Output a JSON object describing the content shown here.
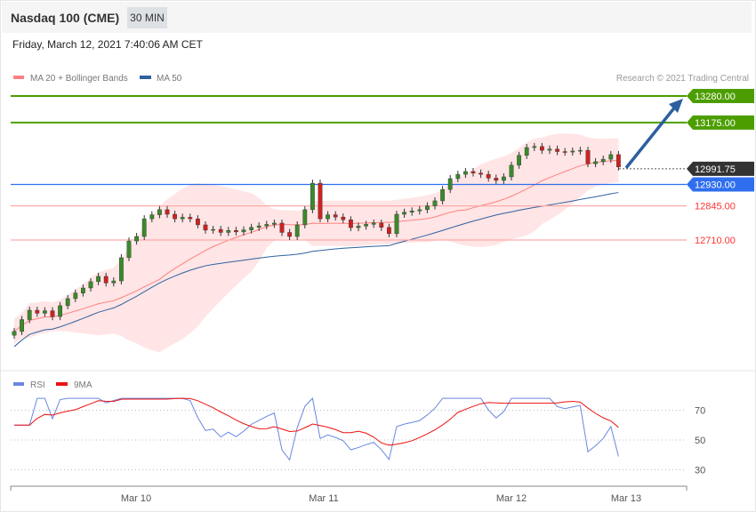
{
  "header": {
    "title": "Nasdaq 100 (CME)",
    "timeframe": "30 MIN",
    "date": "Friday, March 12, 2021 7:40:06 AM CET"
  },
  "legend": {
    "ma20": "MA 20 + Bollinger Bands",
    "ma50": "MA 50",
    "rsi": "RSI",
    "ma9": "9MA",
    "copyright": "Research © 2021 Trading Central"
  },
  "colors": {
    "resistance": "#4c9e00",
    "support": "#2f6fef",
    "minor": "#ff3333",
    "current": "#333333",
    "ma20": "#ff8080",
    "ma50": "#3060a0",
    "band": "#ffdede",
    "rsi": "#6a86e0",
    "ma9": "#ee1111",
    "arrow": "#2d5fa0"
  },
  "chart_data": {
    "type": "candlestick",
    "price_range": [
      12250,
      13300
    ],
    "levels": [
      {
        "label": "13280.00",
        "value": 13280,
        "kind": "resistance"
      },
      {
        "label": "13175.00",
        "value": 13175,
        "kind": "resistance"
      },
      {
        "label": "12991.75",
        "value": 12991.75,
        "kind": "current"
      },
      {
        "label": "12930.00",
        "value": 12930,
        "kind": "support"
      },
      {
        "label": "12845.00",
        "value": 12845,
        "kind": "minor"
      },
      {
        "label": "12710.00",
        "value": 12710,
        "kind": "minor"
      }
    ],
    "closes": [
      12348,
      12395,
      12432,
      12420,
      12430,
      12407,
      12450,
      12478,
      12500,
      12520,
      12545,
      12566,
      12540,
      12548,
      12640,
      12706,
      12724,
      12794,
      12810,
      12830,
      12812,
      12794,
      12800,
      12794,
      12770,
      12749,
      12752,
      12740,
      12748,
      12742,
      12750,
      12760,
      12766,
      12772,
      12777,
      12740,
      12724,
      12770,
      12830,
      12935,
      12794,
      12810,
      12801,
      12790,
      12759,
      12765,
      12772,
      12777,
      12760,
      12735,
      12812,
      12820,
      12825,
      12830,
      12845,
      12865,
      12910,
      12953,
      12970,
      12981,
      12975,
      12970,
      12955,
      12946,
      12960,
      13006,
      13045,
      13076,
      13080,
      13065,
      13070,
      13060,
      13058,
      13062,
      13065,
      13012,
      13020,
      13030,
      13048,
      12999
    ],
    "forecast_target": 13280,
    "rsi_levels": [
      70,
      50,
      30
    ],
    "x_ticks": [
      "Mar 10",
      "Mar 11",
      "Mar 12",
      "Mar 13"
    ]
  }
}
